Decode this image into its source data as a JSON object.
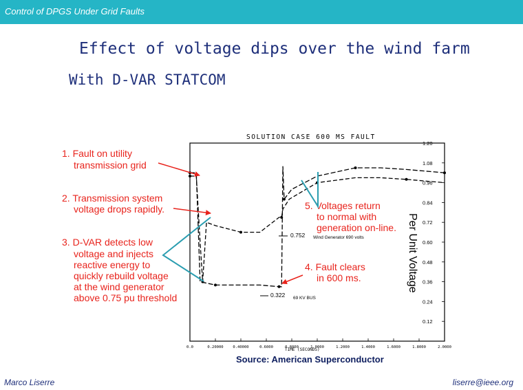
{
  "header": {
    "title": "Control of DPGS Under Grid Faults"
  },
  "slide": {
    "title": "Effect of voltage dips over the wind farm",
    "subtitle": "With D-VAR STATCOM",
    "source": "Source: American Superconductor"
  },
  "footer": {
    "author": "Marco Liserre",
    "email": "liserre@ieee.org"
  },
  "colors": {
    "header": "#25b5c6",
    "title": "#1e2f7a",
    "annotation": "#e8231c",
    "arrow_red": "#e8231c",
    "arrow_teal": "#2a9db0"
  },
  "chart_data": {
    "type": "line",
    "title": "SOLUTION CASE 600 MS FAULT",
    "xlabel": "TIME (SECONDS)",
    "ylabel": "Per Unit Voltage",
    "xlim": [
      0,
      2.0
    ],
    "ylim": [
      0.0,
      1.2
    ],
    "x_ticks": [
      "0.0",
      "0.20000",
      "0.40000",
      "0.6000",
      "0.8000",
      "1.0000",
      "1.2000",
      "1.4000",
      "1.6000",
      "1.8000",
      "2.0000"
    ],
    "y_ticks": [
      "1.20",
      "1.08",
      "0.96",
      "0.84",
      "0.72",
      "0.60",
      "0.48",
      "0.36",
      "0.24",
      "0.12"
    ],
    "series": [
      {
        "name": "Wind Generator 690 volts",
        "points": [
          [
            0,
            1.0
          ],
          [
            0.05,
            1.0
          ],
          [
            0.08,
            0.6
          ],
          [
            0.1,
            0.36
          ],
          [
            0.13,
            0.72
          ],
          [
            0.2,
            0.7
          ],
          [
            0.4,
            0.66
          ],
          [
            0.55,
            0.66
          ],
          [
            0.7,
            0.75
          ],
          [
            0.72,
            0.75
          ],
          [
            0.73,
            0.8
          ],
          [
            0.78,
            0.86
          ],
          [
            1.0,
            0.96
          ],
          [
            1.3,
            0.99
          ],
          [
            1.5,
            0.99
          ],
          [
            1.7,
            0.98
          ],
          [
            2.0,
            0.96
          ]
        ]
      },
      {
        "name": "69 KV BUS",
        "points": [
          [
            0,
            1.02
          ],
          [
            0.05,
            1.02
          ],
          [
            0.08,
            0.36
          ],
          [
            0.2,
            0.34
          ],
          [
            0.4,
            0.34
          ],
          [
            0.55,
            0.34
          ],
          [
            0.7,
            0.33
          ],
          [
            0.72,
            0.33
          ],
          [
            0.73,
            1.06
          ],
          [
            0.74,
            0.86
          ],
          [
            0.8,
            0.92
          ],
          [
            1.0,
            1.0
          ],
          [
            1.3,
            1.05
          ],
          [
            1.5,
            1.05
          ],
          [
            1.7,
            1.04
          ],
          [
            2.0,
            1.02
          ]
        ]
      }
    ],
    "value_labels": [
      {
        "text": "0.752",
        "series": "Wind Generator 690 volts"
      },
      {
        "text": "0.322",
        "series": "69 KV BUS"
      }
    ],
    "annotations": [
      {
        "number": "1.",
        "lines": [
          "Fault on utility",
          "transmission grid"
        ]
      },
      {
        "number": "2.",
        "lines": [
          "Transmission system",
          "voltage drops rapidly."
        ]
      },
      {
        "number": "3.",
        "lines": [
          "D-VAR detects low",
          "voltage and injects",
          "reactive energy to",
          "quickly rebuild voltage",
          "at the wind generator",
          "above 0.75 pu threshold"
        ]
      },
      {
        "number": "4.",
        "lines": [
          "Fault clears",
          "in 600 ms."
        ]
      },
      {
        "number": "5.",
        "lines": [
          "Voltages return",
          "to normal with",
          "generation on-line."
        ]
      }
    ]
  }
}
